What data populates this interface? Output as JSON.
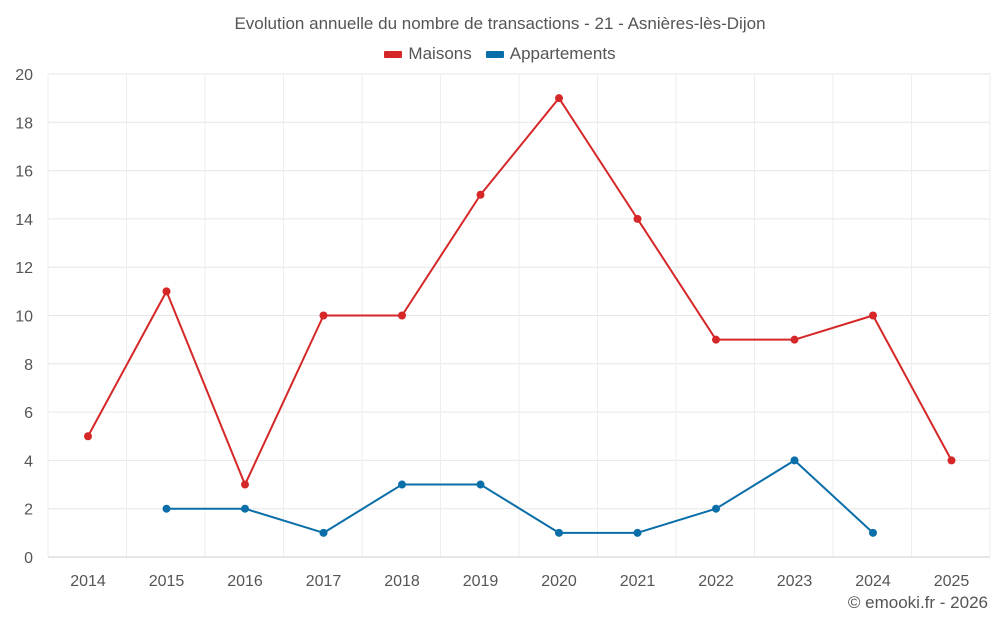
{
  "chart_data": {
    "type": "line",
    "title": "Evolution annuelle du nombre de transactions - 21 - Asnières-lès-Dijon",
    "xlabel": "",
    "ylabel": "",
    "categories": [
      "2014",
      "2015",
      "2016",
      "2017",
      "2018",
      "2019",
      "2020",
      "2021",
      "2022",
      "2023",
      "2024",
      "2025"
    ],
    "ylim": [
      0,
      20
    ],
    "yticks": [
      0,
      2,
      4,
      6,
      8,
      10,
      12,
      14,
      16,
      18,
      20
    ],
    "grid": true,
    "legend_position": "top-center",
    "series": [
      {
        "name": "Maisons",
        "color": "#d62728",
        "values": [
          5,
          11,
          3,
          10,
          10,
          15,
          19,
          14,
          9,
          9,
          10,
          4
        ]
      },
      {
        "name": "Appartements",
        "color": "#0a6ea8",
        "values": [
          null,
          2,
          2,
          1,
          3,
          3,
          1,
          1,
          2,
          4,
          1,
          null
        ]
      }
    ]
  },
  "watermark": "© emooki.fr - 2026"
}
